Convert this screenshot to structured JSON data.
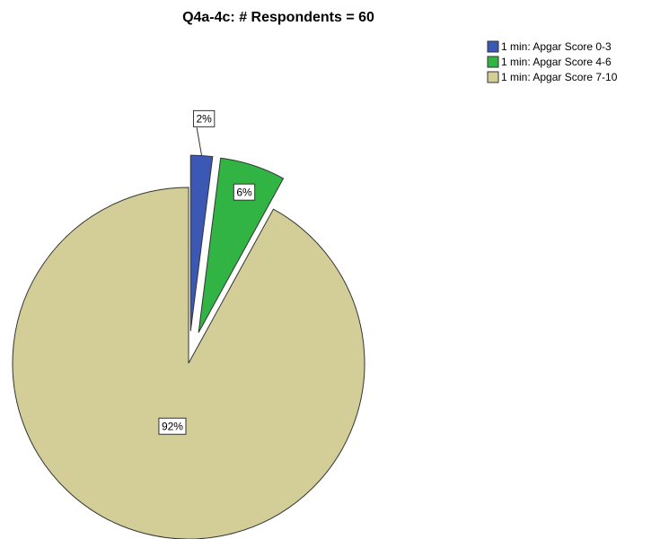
{
  "chart_data": {
    "type": "pie",
    "title": "Q4a-4c: # Respondents = 60",
    "categories": [
      "1 min: Apgar Score 0-3",
      "1 min: Apgar Score 4-6",
      "1 min: Apgar Score 7-10"
    ],
    "values": [
      2,
      6,
      92
    ],
    "value_labels": [
      "2%",
      "6%",
      "92%"
    ],
    "colors": [
      "#3b58b5",
      "#31b444",
      "#d3ce97"
    ],
    "explode": [
      true,
      true,
      false
    ],
    "legend": "top-right"
  }
}
